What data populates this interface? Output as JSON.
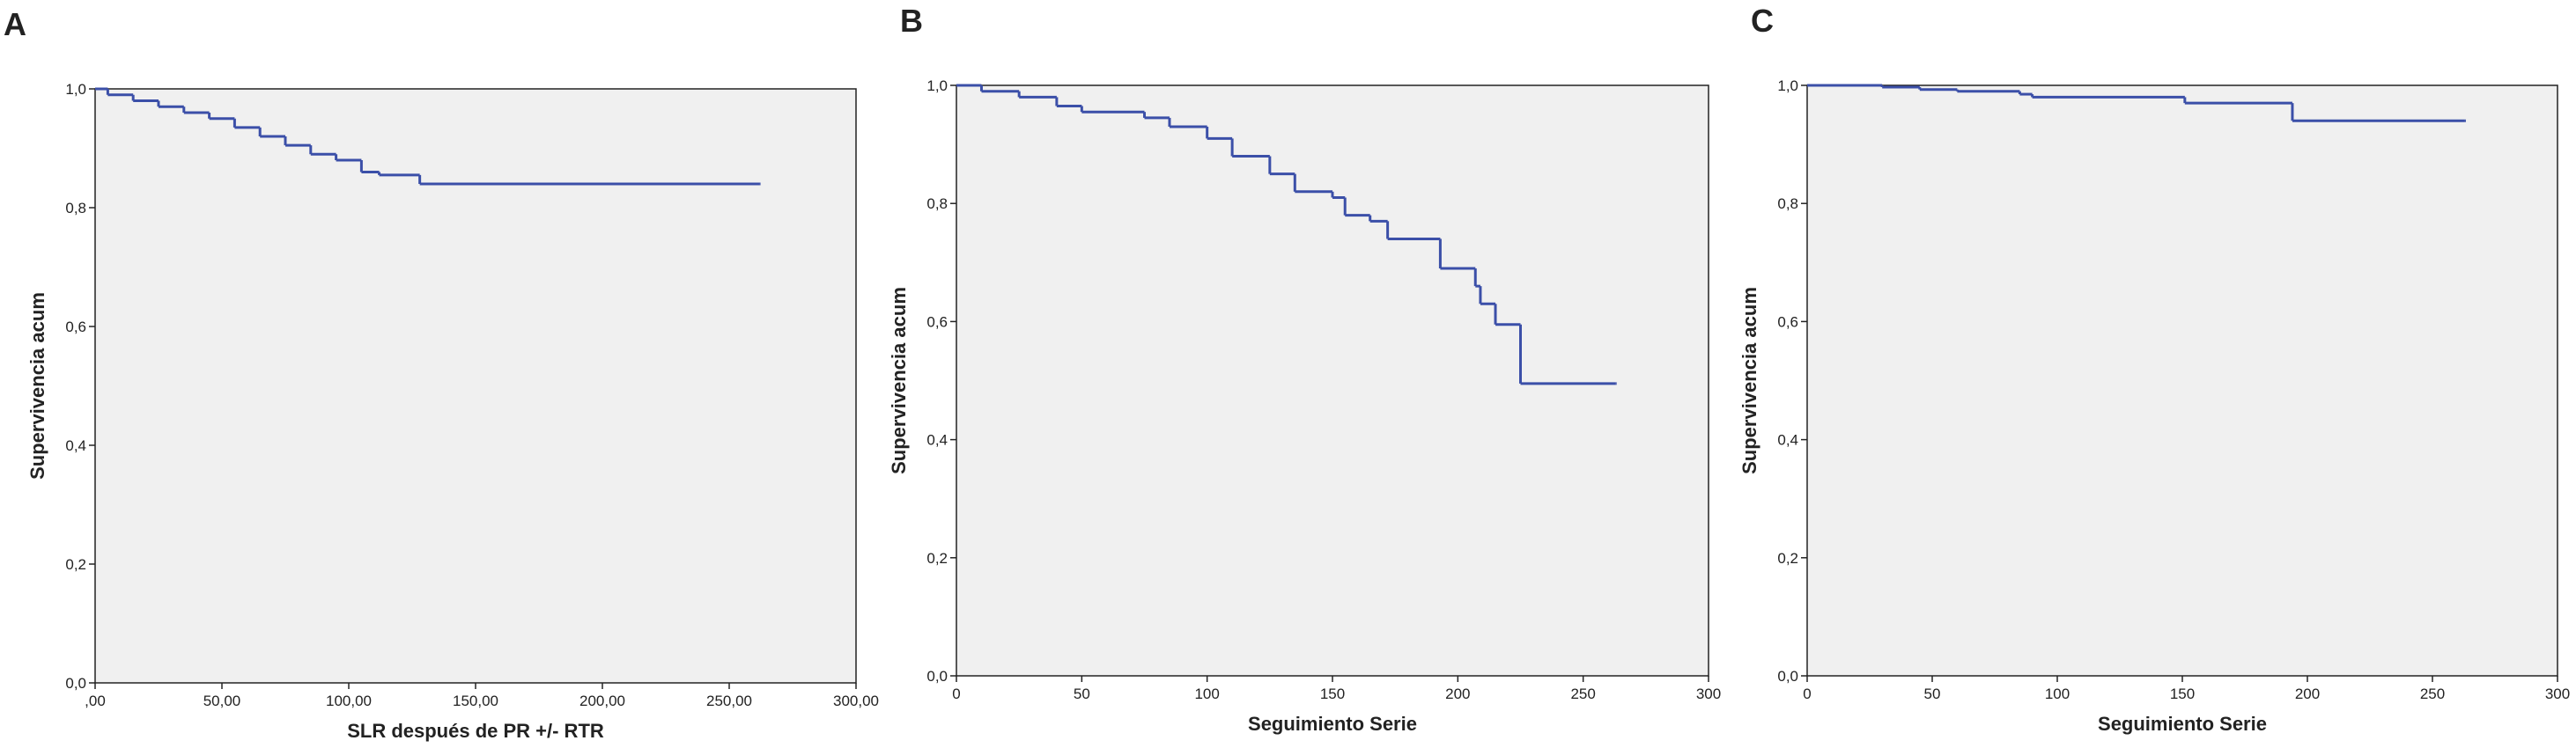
{
  "chart_data": [
    {
      "type": "line",
      "step": true,
      "panel_label": "A",
      "xlabel": "SLR después de PR +/- RTR",
      "ylabel": "Supervivencia acum",
      "color": "#3b4fa8",
      "x": [
        0,
        5,
        15,
        25,
        35,
        45,
        55,
        65,
        75,
        85,
        95,
        105,
        112,
        128,
        262
      ],
      "values": [
        1.0,
        0.99,
        0.98,
        0.97,
        0.96,
        0.95,
        0.935,
        0.92,
        0.905,
        0.89,
        0.88,
        0.86,
        0.855,
        0.84,
        0.84
      ],
      "xlim": [
        0,
        300
      ],
      "ylim": [
        0,
        1.0
      ],
      "xticks": [
        {
          "value": 0,
          "label": ",00"
        },
        {
          "value": 50,
          "label": "50,00"
        },
        {
          "value": 100,
          "label": "100,00"
        },
        {
          "value": 150,
          "label": "150,00"
        },
        {
          "value": 200,
          "label": "200,00"
        },
        {
          "value": 250,
          "label": "250,00"
        },
        {
          "value": 300,
          "label": "300,00"
        }
      ],
      "yticks": [
        {
          "value": 0,
          "label": "0,0"
        },
        {
          "value": 0.2,
          "label": "0,2"
        },
        {
          "value": 0.4,
          "label": "0,4"
        },
        {
          "value": 0.6,
          "label": "0,6"
        },
        {
          "value": 0.8,
          "label": "0,8"
        },
        {
          "value": 1.0,
          "label": "1,0"
        }
      ]
    },
    {
      "type": "line",
      "step": true,
      "panel_label": "B",
      "xlabel": "Seguimiento Serie",
      "ylabel": "Supervivencia acum",
      "color": "#3b4fa8",
      "x": [
        0,
        10,
        25,
        40,
        50,
        75,
        85,
        100,
        110,
        125,
        135,
        150,
        155,
        165,
        172,
        193,
        207,
        209,
        215,
        225,
        263
      ],
      "values": [
        1.0,
        0.99,
        0.98,
        0.965,
        0.955,
        0.945,
        0.93,
        0.91,
        0.88,
        0.85,
        0.82,
        0.81,
        0.78,
        0.77,
        0.74,
        0.69,
        0.66,
        0.63,
        0.595,
        0.495,
        0.495
      ],
      "xlim": [
        0,
        300
      ],
      "ylim": [
        0,
        1.0
      ],
      "xticks": [
        0,
        50,
        100,
        150,
        200,
        250,
        300
      ],
      "yticks": [
        {
          "value": 0,
          "label": "0,0"
        },
        {
          "value": 0.2,
          "label": "0,2"
        },
        {
          "value": 0.4,
          "label": "0,4"
        },
        {
          "value": 0.6,
          "label": "0,6"
        },
        {
          "value": 0.8,
          "label": "0,8"
        },
        {
          "value": 1.0,
          "label": "1,0"
        }
      ]
    },
    {
      "type": "line",
      "step": true,
      "panel_label": "C",
      "xlabel": "Seguimiento Serie",
      "ylabel": "Supervivencia acum",
      "color": "#3b4fa8",
      "x": [
        0,
        30,
        45,
        60,
        85,
        90,
        151,
        194,
        263
      ],
      "values": [
        1.0,
        0.997,
        0.993,
        0.99,
        0.985,
        0.98,
        0.97,
        0.94,
        0.94
      ],
      "xlim": [
        0,
        300
      ],
      "ylim": [
        0,
        1.0
      ],
      "xticks": [
        0,
        50,
        100,
        150,
        200,
        250,
        300
      ],
      "yticks": [
        {
          "value": 0,
          "label": "0,0"
        },
        {
          "value": 0.2,
          "label": "0,2"
        },
        {
          "value": 0.4,
          "label": "0,4"
        },
        {
          "value": 0.6,
          "label": "0,6"
        },
        {
          "value": 0.8,
          "label": "0,8"
        },
        {
          "value": 1.0,
          "label": "1,0"
        }
      ]
    }
  ]
}
